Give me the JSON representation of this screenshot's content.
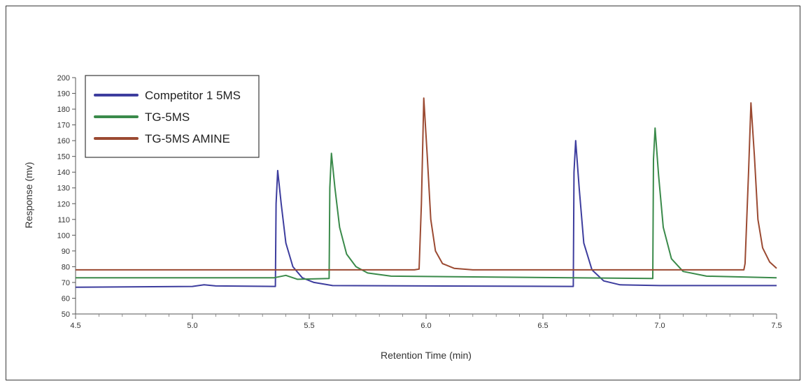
{
  "chart_data": {
    "type": "line",
    "xlabel": "Retention Time (min)",
    "ylabel": "Response (mv)",
    "xlim": [
      4.5,
      7.5
    ],
    "ylim": [
      50,
      200
    ],
    "xticks": [
      "4.5",
      "5.0",
      "5.5",
      "6.0",
      "6.5",
      "7.0",
      "7.5"
    ],
    "yticks": [
      "50",
      "60",
      "70",
      "80",
      "90",
      "100",
      "110",
      "120",
      "130",
      "140",
      "150",
      "160",
      "170",
      "180",
      "190",
      "200"
    ],
    "grid": false,
    "legend_position": "top-left",
    "series": [
      {
        "name": "Competitor 1 5MS",
        "color": "#3d3d9e",
        "points": [
          [
            4.5,
            67
          ],
          [
            5.0,
            67.5
          ],
          [
            5.05,
            68.5
          ],
          [
            5.1,
            67.8
          ],
          [
            5.355,
            67.5
          ],
          [
            5.358,
            120
          ],
          [
            5.365,
            141
          ],
          [
            5.38,
            120
          ],
          [
            5.4,
            95
          ],
          [
            5.43,
            80
          ],
          [
            5.47,
            73
          ],
          [
            5.52,
            70
          ],
          [
            5.6,
            68
          ],
          [
            6.63,
            67.5
          ],
          [
            6.633,
            140
          ],
          [
            6.64,
            160
          ],
          [
            6.655,
            130
          ],
          [
            6.675,
            95
          ],
          [
            6.71,
            78
          ],
          [
            6.76,
            71
          ],
          [
            6.83,
            68.5
          ],
          [
            7.0,
            68
          ],
          [
            7.5,
            68
          ]
        ]
      },
      {
        "name": "TG-5MS",
        "color": "#3a8a4a",
        "points": [
          [
            4.5,
            73
          ],
          [
            5.35,
            73
          ],
          [
            5.4,
            74.5
          ],
          [
            5.45,
            72
          ],
          [
            5.585,
            72.5
          ],
          [
            5.588,
            130
          ],
          [
            5.595,
            152
          ],
          [
            5.61,
            130
          ],
          [
            5.63,
            105
          ],
          [
            5.66,
            88
          ],
          [
            5.7,
            80
          ],
          [
            5.75,
            76
          ],
          [
            5.85,
            74
          ],
          [
            6.97,
            72.5
          ],
          [
            6.973,
            148
          ],
          [
            6.98,
            168
          ],
          [
            6.995,
            138
          ],
          [
            7.015,
            105
          ],
          [
            7.05,
            85
          ],
          [
            7.1,
            77
          ],
          [
            7.2,
            74
          ],
          [
            7.5,
            73
          ]
        ]
      },
      {
        "name": "TG-5MS AMINE",
        "color": "#9b4a32",
        "points": [
          [
            4.5,
            78
          ],
          [
            5.95,
            78
          ],
          [
            5.97,
            78.5
          ],
          [
            5.98,
            120
          ],
          [
            5.99,
            187
          ],
          [
            6.005,
            150
          ],
          [
            6.02,
            110
          ],
          [
            6.04,
            90
          ],
          [
            6.07,
            82
          ],
          [
            6.12,
            79
          ],
          [
            6.2,
            78
          ],
          [
            7.36,
            78
          ],
          [
            7.365,
            82
          ],
          [
            7.38,
            140
          ],
          [
            7.39,
            184
          ],
          [
            7.405,
            150
          ],
          [
            7.42,
            110
          ],
          [
            7.44,
            92
          ],
          [
            7.47,
            83
          ],
          [
            7.5,
            79
          ]
        ]
      }
    ]
  }
}
